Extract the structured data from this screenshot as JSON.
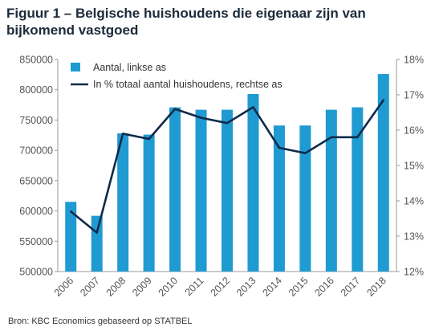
{
  "title": "Figuur 1 – Belgische huishoudens die eigenaar zijn van bijkomend vastgoed",
  "source": "Bron: KBC Economics gebaseerd op STATBEL",
  "colors": {
    "bar": "#1f9bd1",
    "line": "#0f2a4a",
    "axis": "#9a9a9a",
    "text": "#555555"
  },
  "chart_data": {
    "type": "bar+line",
    "categories": [
      "2006",
      "2007",
      "2008",
      "2009",
      "2010",
      "2011",
      "2012",
      "2013",
      "2014",
      "2015",
      "2016",
      "2017",
      "2018"
    ],
    "series": [
      {
        "name": "Aantal, linkse as",
        "type": "bar",
        "axis": "left",
        "values": [
          615000,
          592000,
          728000,
          726000,
          771000,
          767000,
          767000,
          793000,
          741000,
          741000,
          767000,
          771000,
          826000
        ]
      },
      {
        "name": "In % totaal aantal huishoudens, rechtse as",
        "type": "line",
        "axis": "right",
        "values": [
          13.7,
          13.1,
          15.9,
          15.75,
          16.6,
          16.35,
          16.2,
          16.65,
          15.5,
          15.35,
          15.8,
          15.8,
          16.85
        ]
      }
    ],
    "y_left": {
      "min": 500000,
      "max": 850000,
      "ticks": [
        "500000",
        "550000",
        "600000",
        "650000",
        "700000",
        "750000",
        "800000",
        "850000"
      ]
    },
    "y_right": {
      "min": 12,
      "max": 18,
      "ticks": [
        "12%",
        "13%",
        "14%",
        "15%",
        "16%",
        "17%",
        "18%"
      ]
    },
    "legend_position": "top-left",
    "grid": false
  }
}
